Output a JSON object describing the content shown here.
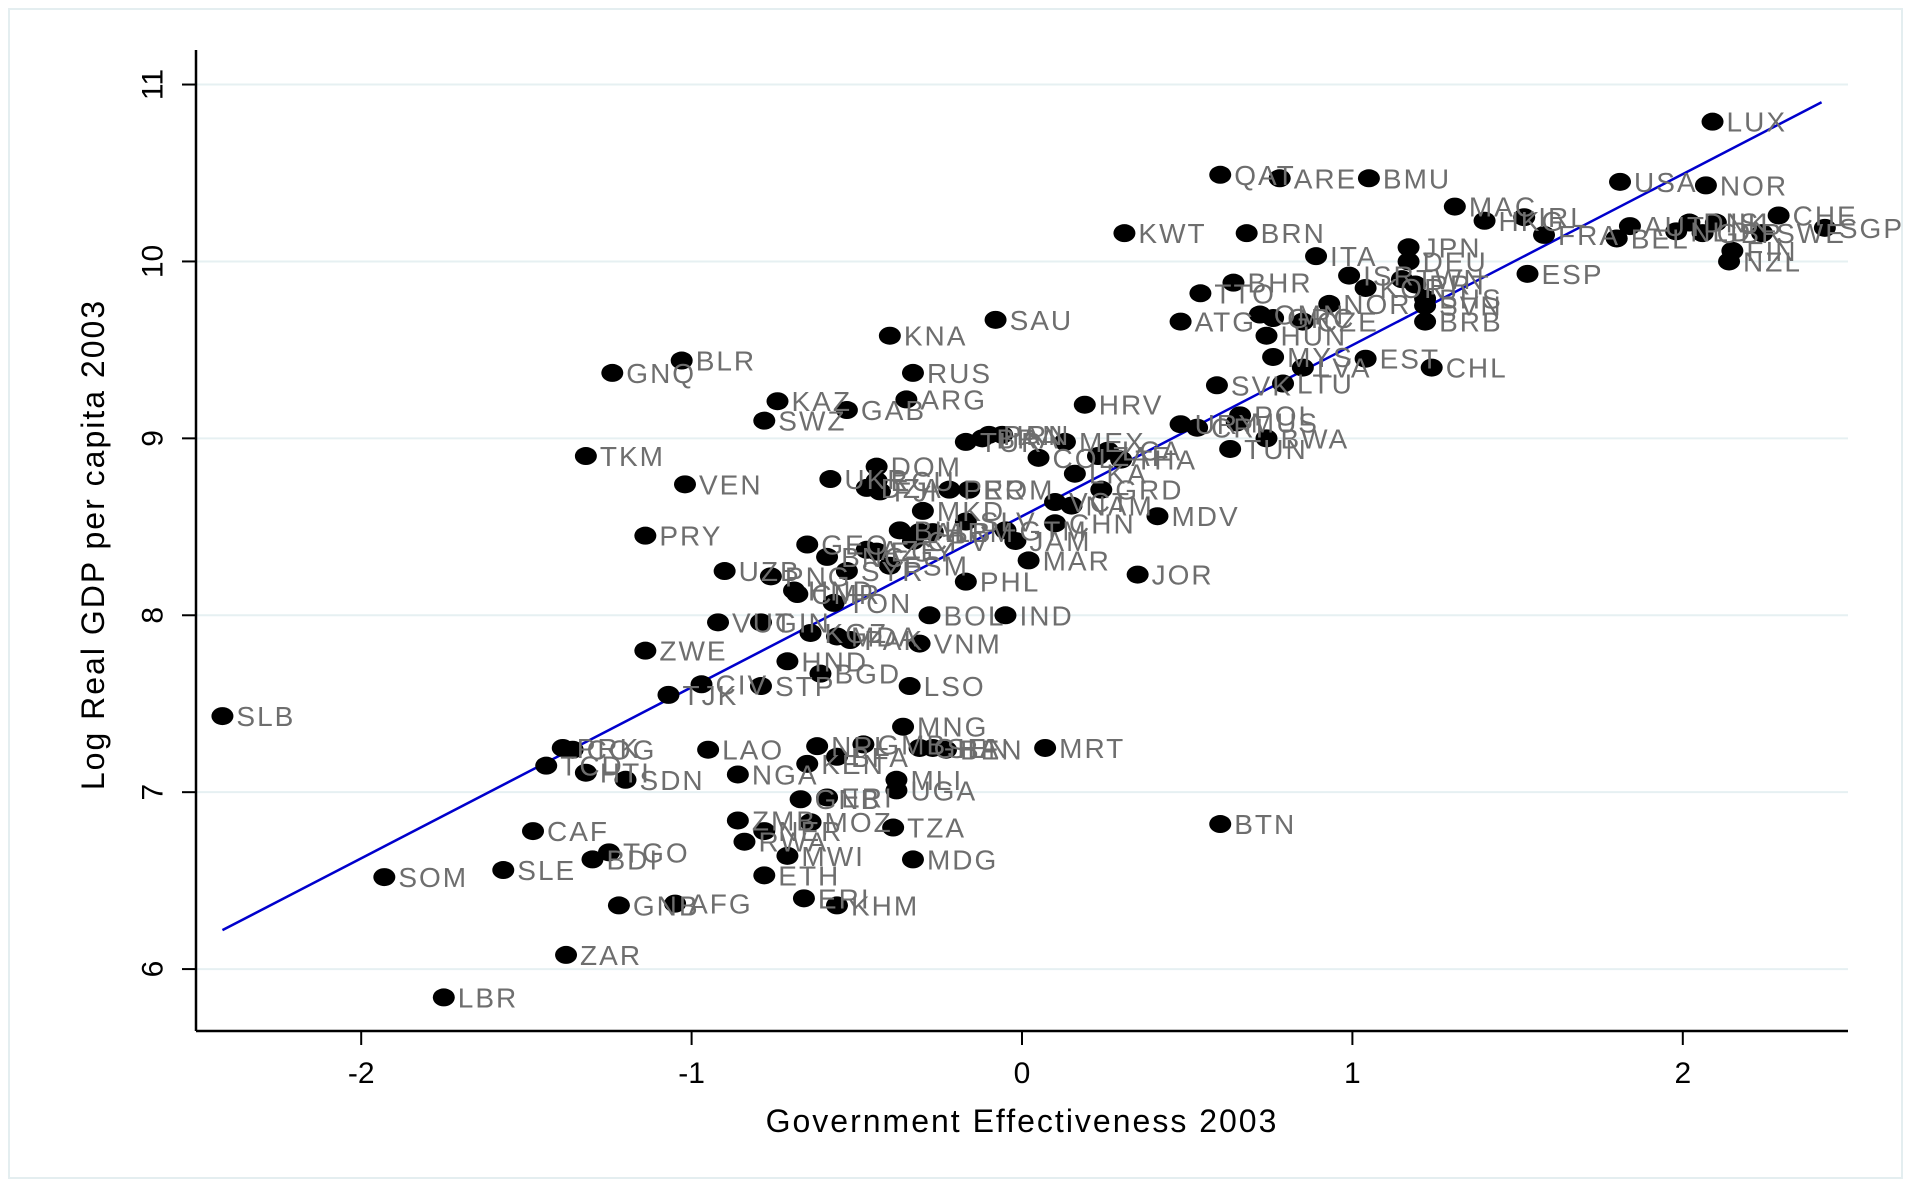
{
  "chart_data": {
    "type": "scatter",
    "title": "",
    "xlabel": "Government Effectiveness 2003",
    "ylabel": "Log Real GDP per capita 2003",
    "xlim": [
      -2.5,
      2.5
    ],
    "ylim": [
      5.65,
      11.15
    ],
    "x_ticks": [
      -2,
      -1,
      0,
      1,
      2
    ],
    "y_ticks": [
      6,
      7,
      8,
      9,
      10,
      11
    ],
    "grid": "horizontal",
    "legend": "none",
    "point_color": "#000000",
    "label_color": "#6e6e6e",
    "fit_line": {
      "color": "#0000cc",
      "x0": -2.42,
      "y0": 6.22,
      "x1": 2.42,
      "y1": 10.9
    },
    "points": [
      {
        "label": "LUX",
        "x": 2.09,
        "y": 10.79
      },
      {
        "label": "QAT",
        "x": 0.6,
        "y": 10.49
      },
      {
        "label": "ARE",
        "x": 0.78,
        "y": 10.47
      },
      {
        "label": "BMU",
        "x": 1.05,
        "y": 10.47
      },
      {
        "label": "USA",
        "x": 1.81,
        "y": 10.45
      },
      {
        "label": "NOR",
        "x": 2.07,
        "y": 10.43
      },
      {
        "label": "MAC",
        "x": 1.31,
        "y": 10.31
      },
      {
        "label": "HKG",
        "x": 1.4,
        "y": 10.23
      },
      {
        "label": "IRL",
        "x": 1.52,
        "y": 10.25
      },
      {
        "label": "CHE",
        "x": 2.29,
        "y": 10.26
      },
      {
        "label": "SGP",
        "x": 2.43,
        "y": 10.19
      },
      {
        "label": "AUT",
        "x": 1.84,
        "y": 10.2
      },
      {
        "label": "DNK",
        "x": 2.02,
        "y": 10.22
      },
      {
        "label": "ISL",
        "x": 2.1,
        "y": 10.22
      },
      {
        "label": "KWT",
        "x": 0.31,
        "y": 10.16
      },
      {
        "label": "BRN",
        "x": 0.68,
        "y": 10.16
      },
      {
        "label": "FRA",
        "x": 1.58,
        "y": 10.15
      },
      {
        "label": "BEL",
        "x": 1.8,
        "y": 10.13
      },
      {
        "label": "SWE",
        "x": 2.24,
        "y": 10.16
      },
      {
        "label": "NLD",
        "x": 1.98,
        "y": 10.17
      },
      {
        "label": "GBR",
        "x": 2.06,
        "y": 10.16
      },
      {
        "label": "FIN",
        "x": 2.15,
        "y": 10.06
      },
      {
        "label": "NZL",
        "x": 2.14,
        "y": 10.0
      },
      {
        "label": "ITA",
        "x": 0.89,
        "y": 10.03
      },
      {
        "label": "JPN",
        "x": 1.17,
        "y": 10.08
      },
      {
        "label": "DEU",
        "x": 1.17,
        "y": 10.0
      },
      {
        "label": "ESP",
        "x": 1.53,
        "y": 9.93
      },
      {
        "label": "ISR",
        "x": 0.99,
        "y": 9.92
      },
      {
        "label": "TWN",
        "x": 1.15,
        "y": 9.9
      },
      {
        "label": "KOR",
        "x": 1.04,
        "y": 9.85
      },
      {
        "label": "PRT",
        "x": 1.19,
        "y": 9.87
      },
      {
        "label": "BHR",
        "x": 0.64,
        "y": 9.88
      },
      {
        "label": "TTO",
        "x": 0.54,
        "y": 9.82
      },
      {
        "label": "BHS",
        "x": 1.22,
        "y": 9.79
      },
      {
        "label": "NOR",
        "x": 0.93,
        "y": 9.76
      },
      {
        "label": "SVN",
        "x": 1.22,
        "y": 9.75
      },
      {
        "label": "OMN",
        "x": 0.72,
        "y": 9.7
      },
      {
        "label": "GRC",
        "x": 0.76,
        "y": 9.68
      },
      {
        "label": "ATG",
        "x": 0.48,
        "y": 9.66
      },
      {
        "label": "CZE",
        "x": 0.85,
        "y": 9.66
      },
      {
        "label": "BRB",
        "x": 1.22,
        "y": 9.66
      },
      {
        "label": "KNA",
        "x": -0.4,
        "y": 9.58
      },
      {
        "label": "SAU",
        "x": -0.08,
        "y": 9.67
      },
      {
        "label": "HUN",
        "x": 0.74,
        "y": 9.58
      },
      {
        "label": "EST",
        "x": 1.04,
        "y": 9.45
      },
      {
        "label": "MYS",
        "x": 0.76,
        "y": 9.46
      },
      {
        "label": "CHL",
        "x": 1.24,
        "y": 9.4
      },
      {
        "label": "SVK",
        "x": 0.59,
        "y": 9.3
      },
      {
        "label": "LTU",
        "x": 0.79,
        "y": 9.31
      },
      {
        "label": "LVA",
        "x": 0.85,
        "y": 9.4
      },
      {
        "label": "BLR",
        "x": -1.03,
        "y": 9.44
      },
      {
        "label": "GNQ",
        "x": -1.24,
        "y": 9.37
      },
      {
        "label": "RUS",
        "x": -0.33,
        "y": 9.37
      },
      {
        "label": "KAZ",
        "x": -0.74,
        "y": 9.21
      },
      {
        "label": "ARG",
        "x": -0.35,
        "y": 9.22
      },
      {
        "label": "GAB",
        "x": -0.53,
        "y": 9.16
      },
      {
        "label": "SWZ",
        "x": -0.78,
        "y": 9.1
      },
      {
        "label": "HRV",
        "x": 0.19,
        "y": 9.19
      },
      {
        "label": "POL",
        "x": 0.66,
        "y": 9.13
      },
      {
        "label": "URY",
        "x": 0.48,
        "y": 9.08
      },
      {
        "label": "MUS",
        "x": 0.65,
        "y": 9.09
      },
      {
        "label": "CRI",
        "x": 0.53,
        "y": 9.06
      },
      {
        "label": "BWA",
        "x": 0.74,
        "y": 9.0
      },
      {
        "label": "TUN",
        "x": 0.63,
        "y": 8.94
      },
      {
        "label": "TKM",
        "x": -1.32,
        "y": 8.9
      },
      {
        "label": "VEN",
        "x": -1.02,
        "y": 8.74
      },
      {
        "label": "PAN",
        "x": -0.1,
        "y": 9.02
      },
      {
        "label": "BRA",
        "x": -0.12,
        "y": 9.0
      },
      {
        "label": "MEX",
        "x": 0.13,
        "y": 8.98
      },
      {
        "label": "LCA",
        "x": 0.26,
        "y": 8.93
      },
      {
        "label": "ZAF",
        "x": 0.23,
        "y": 8.9
      },
      {
        "label": "THA",
        "x": 0.3,
        "y": 8.88
      },
      {
        "label": "TUR",
        "x": -0.17,
        "y": 8.98
      },
      {
        "label": "IRN",
        "x": -0.06,
        "y": 9.02
      },
      {
        "label": "COL",
        "x": 0.05,
        "y": 8.89
      },
      {
        "label": "DOM",
        "x": -0.44,
        "y": 8.84
      },
      {
        "label": "UKR",
        "x": -0.58,
        "y": 8.77
      },
      {
        "label": "GRD",
        "x": 0.24,
        "y": 8.71
      },
      {
        "label": "DZA",
        "x": -0.47,
        "y": 8.72
      },
      {
        "label": "PER",
        "x": -0.22,
        "y": 8.71
      },
      {
        "label": "ROM",
        "x": -0.16,
        "y": 8.71
      },
      {
        "label": "LKA",
        "x": 0.16,
        "y": 8.8
      },
      {
        "label": "FJI",
        "x": -0.43,
        "y": 8.7
      },
      {
        "label": "VCT",
        "x": 0.1,
        "y": 8.64
      },
      {
        "label": "NAM",
        "x": 0.15,
        "y": 8.62
      },
      {
        "label": "ECU",
        "x": -0.44,
        "y": 8.76
      },
      {
        "label": "MDV",
        "x": 0.41,
        "y": 8.56
      },
      {
        "label": "MKD",
        "x": -0.3,
        "y": 8.59
      },
      {
        "label": "CHN",
        "x": 0.1,
        "y": 8.52
      },
      {
        "label": "SLV",
        "x": -0.17,
        "y": 8.53
      },
      {
        "label": "GTM",
        "x": -0.05,
        "y": 8.48
      },
      {
        "label": "PRY",
        "x": -1.14,
        "y": 8.45
      },
      {
        "label": "BIH",
        "x": -0.37,
        "y": 8.48
      },
      {
        "label": "ALB",
        "x": -0.31,
        "y": 8.47
      },
      {
        "label": "ARM",
        "x": -0.27,
        "y": 8.47
      },
      {
        "label": "GEO",
        "x": -0.65,
        "y": 8.4
      },
      {
        "label": "AZE",
        "x": -0.47,
        "y": 8.37
      },
      {
        "label": "CPV",
        "x": -0.33,
        "y": 8.42
      },
      {
        "label": "JAM",
        "x": -0.02,
        "y": 8.42
      },
      {
        "label": "EGY",
        "x": -0.44,
        "y": 8.36
      },
      {
        "label": "BNC",
        "x": -0.59,
        "y": 8.33
      },
      {
        "label": "MAR",
        "x": 0.02,
        "y": 8.31
      },
      {
        "label": "JOR",
        "x": 0.35,
        "y": 8.23
      },
      {
        "label": "UZB",
        "x": -0.9,
        "y": 8.25
      },
      {
        "label": "PNG",
        "x": -0.76,
        "y": 8.22
      },
      {
        "label": "SYR",
        "x": -0.53,
        "y": 8.25
      },
      {
        "label": "FSM",
        "x": -0.4,
        "y": 8.28
      },
      {
        "label": "HND",
        "x": -0.69,
        "y": 8.14
      },
      {
        "label": "PHL",
        "x": -0.17,
        "y": 8.19
      },
      {
        "label": "CMR",
        "x": -0.68,
        "y": 8.12
      },
      {
        "label": "TON",
        "x": -0.57,
        "y": 8.07
      },
      {
        "label": "BOL",
        "x": -0.28,
        "y": 8.0
      },
      {
        "label": "IND",
        "x": -0.05,
        "y": 8.0
      },
      {
        "label": "VUT",
        "x": -0.92,
        "y": 7.96
      },
      {
        "label": "GIN",
        "x": -0.79,
        "y": 7.96
      },
      {
        "label": "KGZ",
        "x": -0.64,
        "y": 7.9
      },
      {
        "label": "MDA",
        "x": -0.56,
        "y": 7.88
      },
      {
        "label": "PAK",
        "x": -0.52,
        "y": 7.86
      },
      {
        "label": "VNM",
        "x": -0.31,
        "y": 7.84
      },
      {
        "label": "ZWE",
        "x": -1.14,
        "y": 7.8
      },
      {
        "label": "HND",
        "x": -0.71,
        "y": 7.74
      },
      {
        "label": "BGD",
        "x": -0.61,
        "y": 7.67
      },
      {
        "label": "CIV",
        "x": -0.97,
        "y": 7.61
      },
      {
        "label": "STP",
        "x": -0.79,
        "y": 7.6
      },
      {
        "label": "LSO",
        "x": -0.34,
        "y": 7.6
      },
      {
        "label": "TJK",
        "x": -1.07,
        "y": 7.55
      },
      {
        "label": "SLB",
        "x": -2.42,
        "y": 7.43
      },
      {
        "label": "MNG",
        "x": -0.36,
        "y": 7.37
      },
      {
        "label": "PRK",
        "x": -1.39,
        "y": 7.25
      },
      {
        "label": "COG",
        "x": -1.36,
        "y": 7.24
      },
      {
        "label": "LAO",
        "x": -0.95,
        "y": 7.24
      },
      {
        "label": "NPL",
        "x": -0.62,
        "y": 7.26
      },
      {
        "label": "SEN",
        "x": -0.27,
        "y": 7.25
      },
      {
        "label": "GHA",
        "x": -0.31,
        "y": 7.25
      },
      {
        "label": "BEN",
        "x": -0.23,
        "y": 7.24
      },
      {
        "label": "MRT",
        "x": 0.07,
        "y": 7.25
      },
      {
        "label": "GMB",
        "x": -0.48,
        "y": 7.27
      },
      {
        "label": "TCD",
        "x": -1.44,
        "y": 7.15
      },
      {
        "label": "HTI",
        "x": -1.32,
        "y": 7.11
      },
      {
        "label": "KEN",
        "x": -0.65,
        "y": 7.16
      },
      {
        "label": "MLI",
        "x": -0.38,
        "y": 7.07
      },
      {
        "label": "SDN",
        "x": -1.2,
        "y": 7.07
      },
      {
        "label": "NGA",
        "x": -0.86,
        "y": 7.1
      },
      {
        "label": "BFA",
        "x": -0.56,
        "y": 7.2
      },
      {
        "label": "UGA",
        "x": -0.38,
        "y": 7.01
      },
      {
        "label": "BDI",
        "x": -1.3,
        "y": 6.62
      },
      {
        "label": "ERI",
        "x": -0.59,
        "y": 6.97
      },
      {
        "label": "GNB",
        "x": -0.67,
        "y": 6.96
      },
      {
        "label": "CAF",
        "x": -1.48,
        "y": 6.78
      },
      {
        "label": "TGO",
        "x": -1.25,
        "y": 6.66
      },
      {
        "label": "ZMB",
        "x": -0.86,
        "y": 6.84
      },
      {
        "label": "MOZ",
        "x": -0.64,
        "y": 6.83
      },
      {
        "label": "NER",
        "x": -0.78,
        "y": 6.78
      },
      {
        "label": "RWA",
        "x": -0.84,
        "y": 6.72
      },
      {
        "label": "TZA",
        "x": -0.39,
        "y": 6.8
      },
      {
        "label": "BTN",
        "x": 0.6,
        "y": 6.82
      },
      {
        "label": "MWI",
        "x": -0.71,
        "y": 6.64
      },
      {
        "label": "SOM",
        "x": -1.93,
        "y": 6.52
      },
      {
        "label": "SLE",
        "x": -1.57,
        "y": 6.56
      },
      {
        "label": "ETH",
        "x": -0.78,
        "y": 6.53
      },
      {
        "label": "MDG",
        "x": -0.33,
        "y": 6.62
      },
      {
        "label": "GNB",
        "x": -1.22,
        "y": 6.36
      },
      {
        "label": "AFG",
        "x": -1.05,
        "y": 6.37
      },
      {
        "label": "ERI",
        "x": -0.66,
        "y": 6.4
      },
      {
        "label": "KHM",
        "x": -0.56,
        "y": 6.36
      },
      {
        "label": "ZAR",
        "x": -1.38,
        "y": 6.08
      },
      {
        "label": "LBR",
        "x": -1.75,
        "y": 5.84
      }
    ]
  }
}
